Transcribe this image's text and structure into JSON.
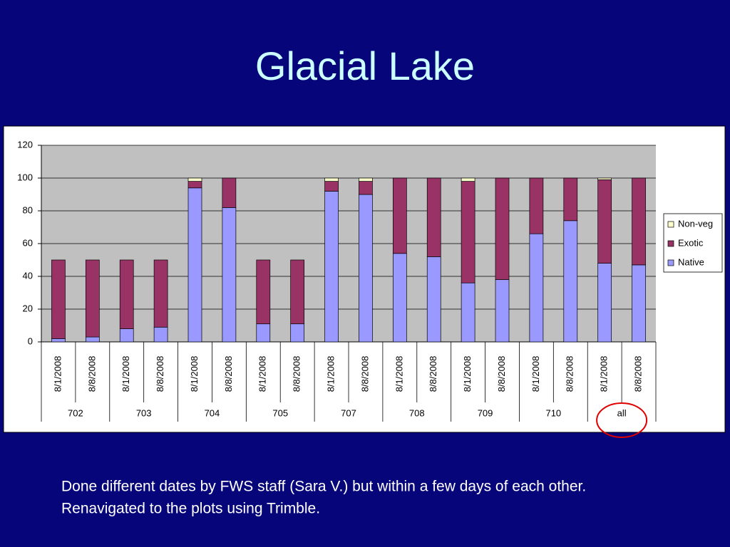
{
  "chart_data": {
    "type": "stacked_bar",
    "title": "Glacial Lake",
    "categories": [
      "8/1/2008",
      "8/8/2008",
      "8/1/2008",
      "8/8/2008",
      "8/1/2008",
      "8/8/2008",
      "8/1/2008",
      "8/8/2008",
      "8/1/2008",
      "8/8/2008",
      "8/1/2008",
      "8/8/2008",
      "8/1/2008",
      "8/8/2008",
      "8/1/2008",
      "8/8/2008",
      "8/1/2008",
      "8/8/2008"
    ],
    "groups": [
      "702",
      "703",
      "704",
      "705",
      "707",
      "708",
      "709",
      "710",
      "all"
    ],
    "series": [
      {
        "name": "Native",
        "color": "#9999ff",
        "values": [
          2,
          3,
          8,
          9,
          94,
          82,
          11,
          11,
          92,
          90,
          54,
          52,
          36,
          38,
          66,
          74,
          48,
          47
        ]
      },
      {
        "name": "Exotic",
        "color": "#993366",
        "values": [
          48,
          47,
          42,
          41,
          4,
          18,
          39,
          39,
          6,
          8,
          46,
          48,
          62,
          62,
          34,
          26,
          51,
          53
        ]
      },
      {
        "name": "Non-veg",
        "color": "#ffffcc",
        "values": [
          0,
          0,
          0,
          0,
          2,
          0,
          0,
          0,
          2,
          2,
          0,
          0,
          2,
          0,
          0,
          0,
          1,
          0
        ]
      }
    ],
    "ylim": [
      0,
      120
    ],
    "yticks": [
      0,
      20,
      40,
      60,
      80,
      100,
      120
    ],
    "grid": true,
    "legend": "right",
    "notes": [
      "Done different dates by FWS staff (Sara V.) but within a few days of each other.",
      "Renavigated to the plots using Trimble."
    ]
  }
}
